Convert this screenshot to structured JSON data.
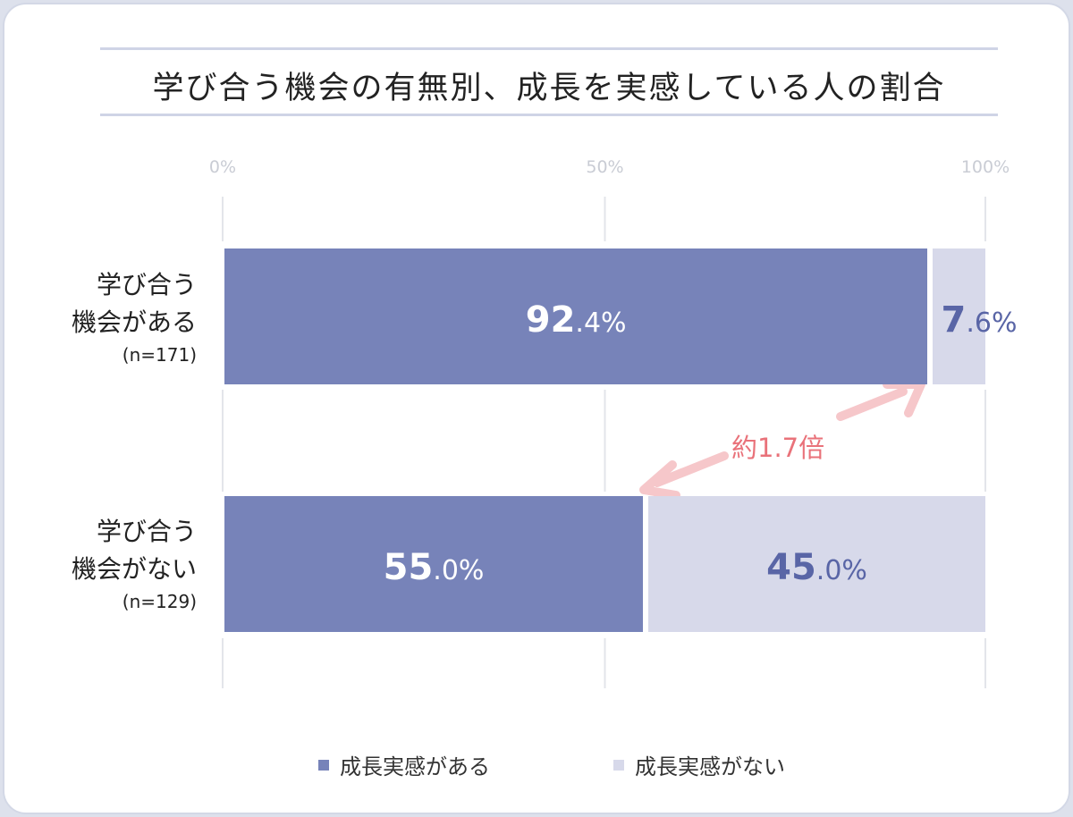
{
  "chart_data": {
    "type": "bar",
    "orientation": "horizontal",
    "stacked": true,
    "title": "学び合う機会の有無別、成長を実感している人の割合",
    "xlim": [
      0,
      100
    ],
    "x_ticks": [
      "0%",
      "50%",
      "100%"
    ],
    "categories": [
      {
        "line1": "学び合う",
        "line2": "機会がある",
        "n": "(n=171)"
      },
      {
        "line1": "学び合う",
        "line2": "機会がない",
        "n": "(n=129)"
      }
    ],
    "series": [
      {
        "name": "成長実感がある",
        "values": [
          92.4,
          55.0
        ],
        "color": "#7783b9",
        "labels": [
          {
            "int": "92",
            "dec": ".4%"
          },
          {
            "int": "55",
            "dec": ".0%"
          }
        ]
      },
      {
        "name": "成長実感がない",
        "values": [
          7.6,
          45.0
        ],
        "color": "#d7d9ea",
        "labels": [
          {
            "int": "7",
            "dec": ".6%"
          },
          {
            "int": "45",
            "dec": ".0%"
          }
        ]
      }
    ],
    "annotation": "約1.7倍",
    "grid": true,
    "legend_position": "bottom"
  }
}
